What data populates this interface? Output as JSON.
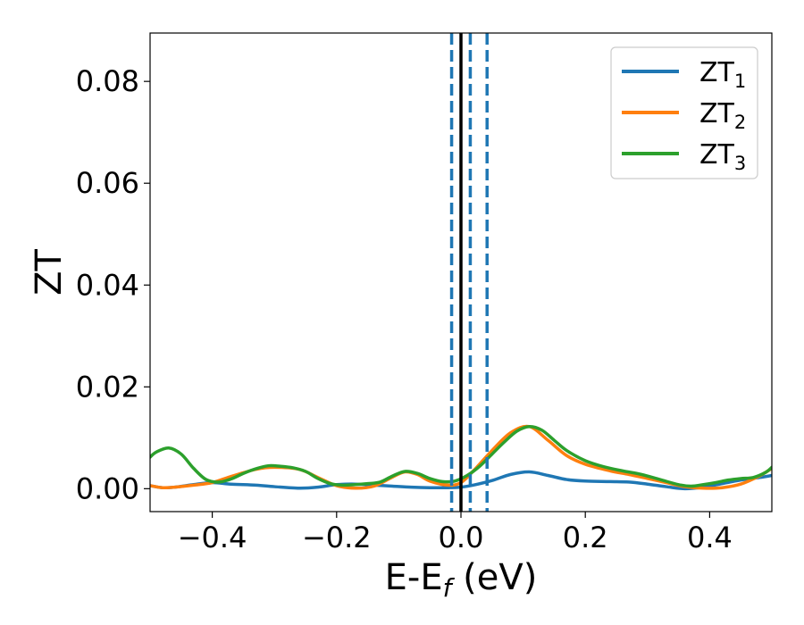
{
  "chart_data": {
    "type": "line",
    "title": "",
    "xlabel": {
      "main": "E-E",
      "sub": "f",
      "suffix": " (eV)"
    },
    "ylabel": "ZT",
    "xlim": [
      -0.5,
      0.5
    ],
    "ylim": [
      -0.0045,
      0.0895
    ],
    "x_ticks": [
      -0.4,
      -0.2,
      0.0,
      0.2,
      0.4
    ],
    "x_tick_labels": [
      "−0.4",
      "−0.2",
      "0.0",
      "0.2",
      "0.4"
    ],
    "y_ticks": [
      0.0,
      0.02,
      0.04,
      0.06,
      0.08
    ],
    "y_tick_labels": [
      "0.00",
      "0.02",
      "0.04",
      "0.06",
      "0.08"
    ],
    "grid": false,
    "legend_position": "top-right",
    "series": [
      {
        "name": "ZT1",
        "label_main": "ZT",
        "label_sub": "1",
        "color": "#1f77b4",
        "x": [
          -0.5,
          -0.48,
          -0.46,
          -0.43,
          -0.4,
          -0.37,
          -0.33,
          -0.3,
          -0.26,
          -0.23,
          -0.2,
          -0.17,
          -0.14,
          -0.11,
          -0.08,
          -0.05,
          -0.02,
          0.0,
          0.02,
          0.05,
          0.08,
          0.11,
          0.14,
          0.17,
          0.2,
          0.24,
          0.27,
          0.3,
          0.33,
          0.36,
          0.39,
          0.42,
          0.45,
          0.48,
          0.5
        ],
        "y": [
          0.0006,
          0.0002,
          0.0003,
          0.0008,
          0.0012,
          0.0009,
          0.0007,
          0.0004,
          0.0001,
          0.0003,
          0.0008,
          0.0009,
          0.0007,
          0.0005,
          0.0003,
          0.0002,
          0.0002,
          0.0003,
          0.0007,
          0.0016,
          0.0028,
          0.0033,
          0.0026,
          0.0018,
          0.0015,
          0.0014,
          0.0013,
          0.0009,
          0.0004,
          0.0,
          0.0003,
          0.001,
          0.0017,
          0.0022,
          0.0026
        ]
      },
      {
        "name": "ZT2",
        "label_main": "ZT",
        "label_sub": "2",
        "color": "#ff7f0e",
        "x": [
          -0.5,
          -0.48,
          -0.46,
          -0.43,
          -0.4,
          -0.37,
          -0.33,
          -0.3,
          -0.26,
          -0.23,
          -0.2,
          -0.17,
          -0.14,
          -0.11,
          -0.09,
          -0.07,
          -0.05,
          -0.02,
          0.0,
          0.02,
          0.05,
          0.08,
          0.11,
          0.14,
          0.17,
          0.2,
          0.24,
          0.27,
          0.3,
          0.33,
          0.36,
          0.39,
          0.42,
          0.45,
          0.48,
          0.5
        ],
        "y": [
          0.0006,
          0.0002,
          0.0003,
          0.0007,
          0.0012,
          0.0024,
          0.0038,
          0.0042,
          0.0038,
          0.0022,
          0.0006,
          0.0001,
          0.0005,
          0.0023,
          0.0033,
          0.0028,
          0.0015,
          0.0007,
          0.0012,
          0.0035,
          0.0075,
          0.011,
          0.0122,
          0.0095,
          0.0065,
          0.0048,
          0.0035,
          0.0028,
          0.002,
          0.0012,
          0.0004,
          0.0001,
          0.0002,
          0.0009,
          0.0025,
          0.004
        ]
      },
      {
        "name": "ZT3",
        "label_main": "ZT",
        "label_sub": "3",
        "color": "#2ca02c",
        "x": [
          -0.5,
          -0.49,
          -0.47,
          -0.45,
          -0.43,
          -0.41,
          -0.39,
          -0.37,
          -0.35,
          -0.33,
          -0.31,
          -0.29,
          -0.27,
          -0.25,
          -0.23,
          -0.21,
          -0.19,
          -0.17,
          -0.15,
          -0.13,
          -0.11,
          -0.09,
          -0.07,
          -0.05,
          -0.03,
          -0.01,
          0.01,
          0.03,
          0.05,
          0.07,
          0.09,
          0.11,
          0.13,
          0.15,
          0.17,
          0.2,
          0.23,
          0.26,
          0.29,
          0.32,
          0.35,
          0.37,
          0.39,
          0.41,
          0.43,
          0.45,
          0.47,
          0.49,
          0.5
        ],
        "y": [
          0.0062,
          0.0072,
          0.008,
          0.0068,
          0.004,
          0.0018,
          0.0013,
          0.0019,
          0.003,
          0.0039,
          0.0045,
          0.0044,
          0.0041,
          0.0034,
          0.002,
          0.001,
          0.0007,
          0.0008,
          0.001,
          0.0013,
          0.0025,
          0.0034,
          0.003,
          0.002,
          0.0014,
          0.0015,
          0.0026,
          0.0044,
          0.0068,
          0.0092,
          0.0113,
          0.0122,
          0.0115,
          0.0095,
          0.0075,
          0.0055,
          0.0043,
          0.0035,
          0.0028,
          0.0018,
          0.0008,
          0.0005,
          0.0008,
          0.0012,
          0.0017,
          0.002,
          0.0022,
          0.0032,
          0.0042
        ]
      }
    ],
    "reference_lines": [
      {
        "kind": "solid",
        "x": 0.0,
        "color": "#000000"
      },
      {
        "kind": "dashed",
        "x": -0.015,
        "color": "#1f77b4"
      },
      {
        "kind": "dashed",
        "x": 0.015,
        "color": "#1f77b4"
      },
      {
        "kind": "dashed",
        "x": 0.042,
        "color": "#1f77b4"
      }
    ]
  }
}
